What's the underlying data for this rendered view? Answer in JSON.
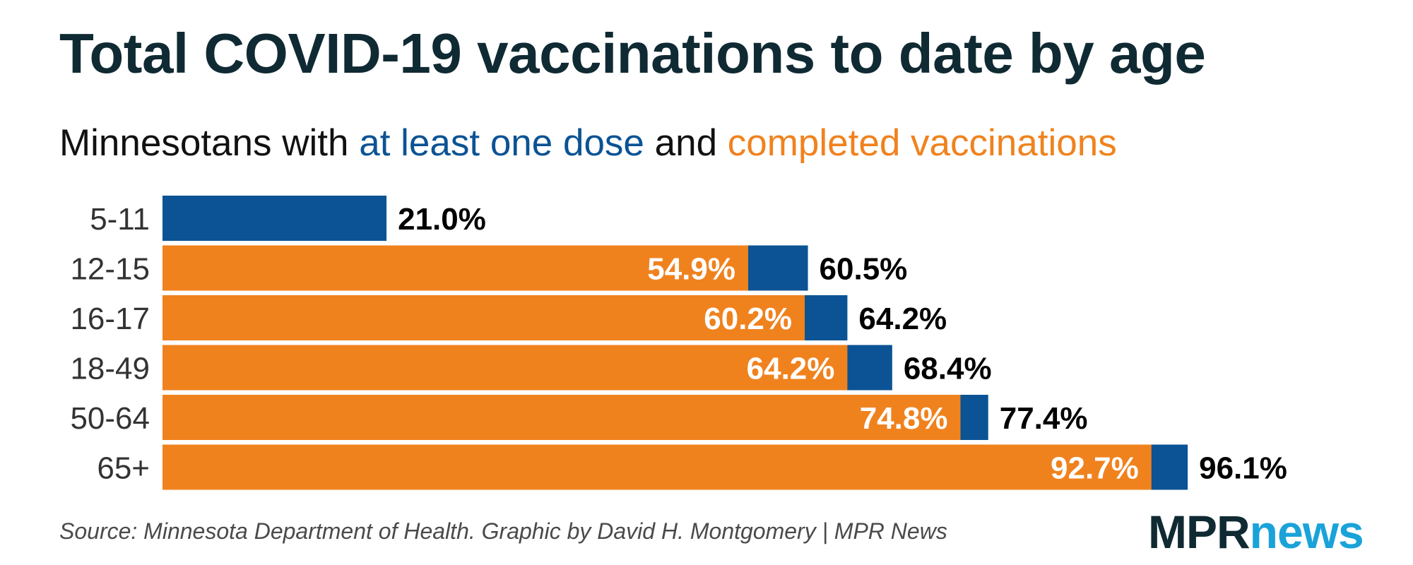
{
  "chart_data": {
    "type": "bar",
    "title": "Total COVID-19 vaccinations to date by age",
    "subtitle": {
      "prefix": "Minnesotans with ",
      "series1_text": "at least one dose",
      "joiner": " and ",
      "series2_text": "completed vaccinations"
    },
    "categories": [
      "5-11",
      "12-15",
      "16-17",
      "18-49",
      "50-64",
      "65+"
    ],
    "series": [
      {
        "name": "at least one dose",
        "color": "#0b5394",
        "values": [
          21.0,
          60.5,
          64.2,
          68.4,
          77.4,
          96.1
        ],
        "labels": [
          "21.0%",
          "60.5%",
          "64.2%",
          "68.4%",
          "77.4%",
          "96.1%"
        ]
      },
      {
        "name": "completed vaccinations",
        "color": "#f0821e",
        "values": [
          null,
          54.9,
          60.2,
          64.2,
          74.8,
          92.7
        ],
        "labels": [
          "",
          "54.9%",
          "60.2%",
          "64.2%",
          "74.8%",
          "92.7%"
        ]
      }
    ],
    "xlim": [
      0,
      100
    ],
    "grid": false,
    "legend": "subtitle"
  },
  "source": "Source: Minnesota Department of Health. Graphic by David H. Montgomery | MPR News",
  "logo": {
    "part1": "MPR",
    "part2": "news"
  }
}
